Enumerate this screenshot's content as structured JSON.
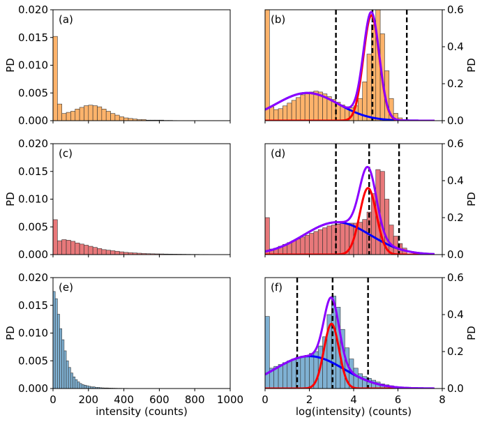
{
  "chart_data": [
    {
      "id": "a",
      "type": "bar",
      "panel_label": "(a)",
      "color": "#fdb36b",
      "ylabel": "PD",
      "xlabel": "",
      "xlim": [
        0,
        1000
      ],
      "ylim": [
        0,
        0.02
      ],
      "yticks": [
        "0.000",
        "0.005",
        "0.010",
        "0.015",
        "0.020"
      ],
      "xticks": [],
      "bin_width": 25,
      "values": [
        0.0152,
        0.003,
        0.0013,
        0.0015,
        0.0017,
        0.0021,
        0.0024,
        0.0027,
        0.0028,
        0.0027,
        0.0025,
        0.0021,
        0.0017,
        0.0013,
        0.001,
        0.0007,
        0.0005,
        0.0004,
        0.0003,
        0.0002,
        0.0002,
        0.0001,
        0.0001,
        0.0001,
        0.0001,
        5e-05,
        5e-05,
        3e-05
      ]
    },
    {
      "id": "b",
      "type": "bar",
      "panel_label": "(b)",
      "color": "#fdb36b",
      "ylabel": "PD",
      "xlabel": "",
      "xlim": [
        0,
        8
      ],
      "ylim": [
        0,
        0.6
      ],
      "yticks": [
        "0.0",
        "0.2",
        "0.4",
        "0.6"
      ],
      "xticks": [],
      "bin_width": 0.2,
      "values": [
        0.6,
        0.075,
        0.06,
        0.065,
        0.08,
        0.095,
        0.11,
        0.125,
        0.14,
        0.15,
        0.155,
        0.16,
        0.155,
        0.145,
        0.13,
        0.115,
        0.1,
        0.085,
        0.075,
        0.07,
        0.08,
        0.12,
        0.21,
        0.36,
        0.52,
        0.6,
        0.47,
        0.27,
        0.12,
        0.04,
        0.015,
        0.005
      ],
      "curves": [
        {
          "name": "narrow-gaussian",
          "color": "#ff0000",
          "kind": "gauss",
          "mu": 4.8,
          "sigma": 0.36,
          "amp": 0.57
        },
        {
          "name": "wide-gaussian",
          "color": "#0000ff",
          "kind": "gauss",
          "mu": 1.9,
          "sigma": 1.4,
          "amp": 0.15
        },
        {
          "name": "total-fit",
          "color": "#8b00ff",
          "kind": "sum"
        }
      ],
      "vlines": [
        3.2,
        4.85,
        6.4
      ]
    },
    {
      "id": "c",
      "type": "bar",
      "panel_label": "(c)",
      "color": "#e8787a",
      "ylabel": "PD",
      "xlabel": "",
      "xlim": [
        0,
        1000
      ],
      "ylim": [
        0,
        0.02
      ],
      "yticks": [
        "0.000",
        "0.005",
        "0.010",
        "0.015",
        "0.020"
      ],
      "xticks": [],
      "bin_width": 25,
      "values": [
        0.0063,
        0.0025,
        0.0027,
        0.0026,
        0.0024,
        0.0021,
        0.0019,
        0.0017,
        0.0015,
        0.0013,
        0.0011,
        0.0009,
        0.0008,
        0.0007,
        0.0006,
        0.0005,
        0.0004,
        0.00035,
        0.0003,
        0.00025,
        0.0002,
        0.00017,
        0.00015,
        0.00013,
        0.00012,
        0.0001,
        9e-05,
        8e-05,
        7e-05,
        6e-05,
        5e-05,
        4e-05,
        4e-05,
        3e-05,
        3e-05
      ]
    },
    {
      "id": "d",
      "type": "bar",
      "panel_label": "(d)",
      "color": "#e8787a",
      "ylabel": "PD",
      "xlabel": "",
      "xlim": [
        0,
        8
      ],
      "ylim": [
        0,
        0.6
      ],
      "yticks": [
        "0.0",
        "0.2",
        "0.4",
        "0.6"
      ],
      "xticks": [],
      "bin_width": 0.2,
      "values": [
        0.2,
        0.03,
        0.035,
        0.045,
        0.055,
        0.065,
        0.075,
        0.085,
        0.095,
        0.105,
        0.115,
        0.125,
        0.135,
        0.145,
        0.155,
        0.16,
        0.165,
        0.17,
        0.17,
        0.17,
        0.17,
        0.175,
        0.19,
        0.23,
        0.33,
        0.46,
        0.45,
        0.3,
        0.16,
        0.1,
        0.06,
        0.035
      ],
      "curves": [
        {
          "name": "narrow-gaussian",
          "color": "#ff0000",
          "kind": "gauss",
          "mu": 4.65,
          "sigma": 0.38,
          "amp": 0.36
        },
        {
          "name": "wide-gaussian",
          "color": "#0000ff",
          "kind": "gauss",
          "mu": 3.25,
          "sigma": 1.5,
          "amp": 0.175
        },
        {
          "name": "total-fit",
          "color": "#8b00ff",
          "kind": "sum"
        }
      ],
      "vlines": [
        3.2,
        4.7,
        6.05
      ]
    },
    {
      "id": "e",
      "type": "bar",
      "panel_label": "(e)",
      "color": "#7fb1d3",
      "ylabel": "PD",
      "xlabel": "intensity (counts)",
      "xlim": [
        0,
        1000
      ],
      "ylim": [
        0,
        0.02
      ],
      "yticks": [
        "0.000",
        "0.005",
        "0.010",
        "0.015",
        "0.020"
      ],
      "xticks": [
        "0",
        "200",
        "400",
        "600",
        "800",
        "1000"
      ],
      "bin_width": 12.5,
      "values": [
        0.0175,
        0.0162,
        0.0134,
        0.0108,
        0.0088,
        0.0068,
        0.005,
        0.0038,
        0.0028,
        0.0021,
        0.0016,
        0.0012,
        0.0009,
        0.0007,
        0.0006,
        0.0005,
        0.0004,
        0.0003,
        0.0003,
        0.0002,
        0.0002,
        0.00015,
        0.00012,
        0.0001,
        0.0001,
        8e-05,
        7e-05,
        6e-05,
        5e-05,
        4e-05,
        4e-05,
        3e-05,
        3e-05,
        3e-05,
        2e-05,
        2e-05,
        2e-05,
        2e-05,
        2e-05,
        2e-05,
        2e-05,
        2e-05,
        2e-05
      ]
    },
    {
      "id": "f",
      "type": "bar",
      "panel_label": "(f)",
      "color": "#7fb1d3",
      "ylabel": "PD",
      "xlabel": "log(intensity) (counts)",
      "xlim": [
        0,
        8
      ],
      "ylim": [
        0,
        0.6
      ],
      "yticks": [
        "0.0",
        "0.2",
        "0.4",
        "0.6"
      ],
      "xticks": [
        "0",
        "2",
        "4",
        "6",
        "8"
      ],
      "bin_width": 0.2,
      "values": [
        0.39,
        0.11,
        0.12,
        0.13,
        0.14,
        0.15,
        0.16,
        0.17,
        0.175,
        0.18,
        0.19,
        0.2,
        0.23,
        0.28,
        0.4,
        0.5,
        0.44,
        0.32,
        0.22,
        0.16,
        0.11,
        0.08,
        0.065,
        0.055,
        0.045,
        0.035,
        0.025,
        0.02,
        0.015,
        0.01,
        0.007,
        0.005
      ],
      "curves": [
        {
          "name": "narrow-gaussian",
          "color": "#ff0000",
          "kind": "gauss",
          "mu": 3.0,
          "sigma": 0.34,
          "amp": 0.35
        },
        {
          "name": "wide-gaussian",
          "color": "#0000ff",
          "kind": "gauss",
          "mu": 2.0,
          "sigma": 1.55,
          "amp": 0.175
        },
        {
          "name": "total-fit",
          "color": "#8b00ff",
          "kind": "sum"
        }
      ],
      "vlines": [
        1.45,
        3.05,
        4.65
      ]
    }
  ]
}
